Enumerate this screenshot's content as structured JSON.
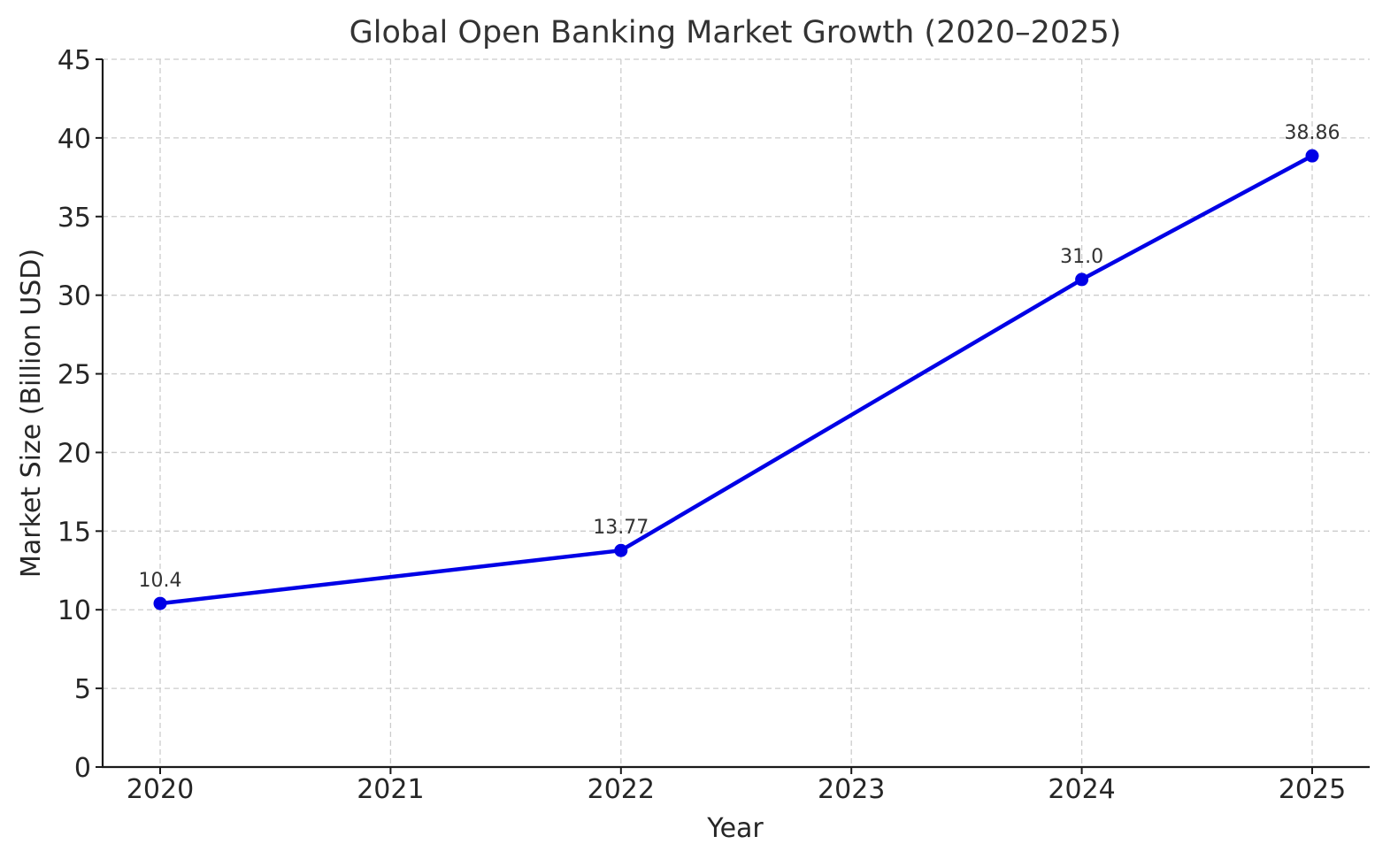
{
  "chart_data": {
    "type": "line",
    "title": "Global Open Banking Market Growth (2020–2025)",
    "xlabel": "Year",
    "ylabel": "Market Size (Billion USD)",
    "categories": [
      "2020",
      "2021",
      "2022",
      "2023",
      "2024",
      "2025"
    ],
    "x_ticks": [
      "2020",
      "2021",
      "2022",
      "2023",
      "2024",
      "2025"
    ],
    "y_ticks": [
      "0",
      "5",
      "10",
      "15",
      "20",
      "25",
      "30",
      "35",
      "40",
      "45"
    ],
    "ylim": [
      0,
      45
    ],
    "grid": true,
    "series": [
      {
        "color": "#0000e6",
        "marker": "circle",
        "points": [
          {
            "x": "2020",
            "y": 10.4,
            "label": "10.4"
          },
          {
            "x": "2022",
            "y": 13.77,
            "label": "13.77"
          },
          {
            "x": "2024",
            "y": 31.0,
            "label": "31.0"
          },
          {
            "x": "2025",
            "y": 38.86,
            "label": "38.86"
          }
        ]
      }
    ]
  }
}
